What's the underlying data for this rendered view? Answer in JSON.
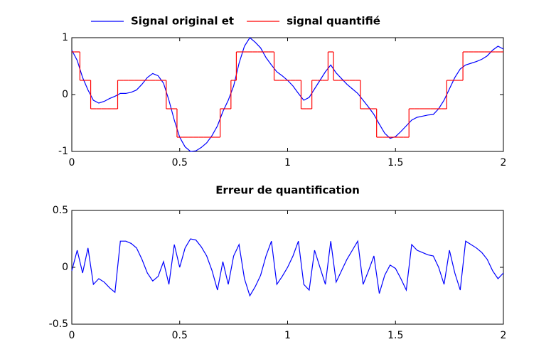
{
  "chart_data": [
    {
      "type": "line",
      "legend": "top",
      "x": [
        0,
        0.025,
        0.05,
        0.075,
        0.1,
        0.125,
        0.15,
        0.175,
        0.2,
        0.225,
        0.25,
        0.275,
        0.3,
        0.325,
        0.35,
        0.375,
        0.4,
        0.425,
        0.45,
        0.475,
        0.5,
        0.525,
        0.55,
        0.575,
        0.6,
        0.625,
        0.65,
        0.675,
        0.7,
        0.725,
        0.75,
        0.775,
        0.8,
        0.825,
        0.85,
        0.875,
        0.9,
        0.925,
        0.95,
        0.975,
        1,
        1.025,
        1.05,
        1.075,
        1.1,
        1.125,
        1.15,
        1.175,
        1.2,
        1.225,
        1.25,
        1.275,
        1.3,
        1.325,
        1.35,
        1.375,
        1.4,
        1.425,
        1.45,
        1.475,
        1.5,
        1.525,
        1.55,
        1.575,
        1.6,
        1.625,
        1.65,
        1.675,
        1.7,
        1.725,
        1.75,
        1.775,
        1.8,
        1.825,
        1.85,
        1.875,
        1.9,
        1.925,
        1.95,
        1.975,
        2
      ],
      "series": [
        {
          "name": "Signal original et",
          "color": "#0000ff",
          "values": [
            0.78,
            0.6,
            0.3,
            0.08,
            -0.1,
            -0.15,
            -0.12,
            -0.07,
            -0.03,
            0.02,
            0.02,
            0.04,
            0.08,
            0.18,
            0.3,
            0.37,
            0.33,
            0.2,
            -0.1,
            -0.45,
            -0.75,
            -0.92,
            -1,
            -0.99,
            -0.93,
            -0.85,
            -0.72,
            -0.55,
            -0.3,
            -0.1,
            0.15,
            0.55,
            0.85,
            1,
            0.92,
            0.82,
            0.65,
            0.52,
            0.4,
            0.33,
            0.25,
            0.15,
            0.02,
            -0.1,
            -0.05,
            0.1,
            0.25,
            0.4,
            0.52,
            0.38,
            0.28,
            0.18,
            0.1,
            0.02,
            -0.1,
            -0.22,
            -0.35,
            -0.52,
            -0.68,
            -0.77,
            -0.74,
            -0.65,
            -0.55,
            -0.45,
            -0.4,
            -0.38,
            -0.36,
            -0.35,
            -0.25,
            -0.1,
            0.1,
            0.3,
            0.45,
            0.52,
            0.55,
            0.58,
            0.62,
            0.68,
            0.78,
            0.85,
            0.8
          ]
        },
        {
          "name": "signal quantifié",
          "color": "#ff0000",
          "drawstyle": "steps",
          "values": [
            0.75,
            0.75,
            0.25,
            0.25,
            -0.25,
            -0.25,
            -0.25,
            -0.25,
            -0.25,
            0.25,
            0.25,
            0.25,
            0.25,
            0.25,
            0.25,
            0.25,
            0.25,
            0.25,
            -0.25,
            -0.25,
            -0.75,
            -0.75,
            -0.75,
            -0.75,
            -0.75,
            -0.75,
            -0.75,
            -0.75,
            -0.25,
            -0.25,
            0.25,
            0.75,
            0.75,
            0.75,
            0.75,
            0.75,
            0.75,
            0.75,
            0.25,
            0.25,
            0.25,
            0.25,
            0.25,
            -0.25,
            -0.25,
            0.25,
            0.25,
            0.25,
            0.75,
            0.25,
            0.25,
            0.25,
            0.25,
            0.25,
            -0.25,
            -0.25,
            -0.25,
            -0.75,
            -0.75,
            -0.75,
            -0.75,
            -0.75,
            -0.75,
            -0.25,
            -0.25,
            -0.25,
            -0.25,
            -0.25,
            -0.25,
            -0.25,
            0.25,
            0.25,
            0.25,
            0.75,
            0.75,
            0.75,
            0.75,
            0.75,
            0.75,
            0.75,
            0.75
          ]
        }
      ],
      "xlim": [
        0,
        2
      ],
      "xticks": [
        0,
        0.5,
        1,
        1.5,
        2
      ],
      "ylim": [
        -1,
        1
      ],
      "yticks": [
        -1,
        0,
        1
      ]
    },
    {
      "type": "line",
      "title": "Erreur de quantification",
      "x": [
        0,
        0.025,
        0.05,
        0.075,
        0.1,
        0.125,
        0.15,
        0.175,
        0.2,
        0.225,
        0.25,
        0.275,
        0.3,
        0.325,
        0.35,
        0.375,
        0.4,
        0.425,
        0.45,
        0.475,
        0.5,
        0.525,
        0.55,
        0.575,
        0.6,
        0.625,
        0.65,
        0.675,
        0.7,
        0.725,
        0.75,
        0.775,
        0.8,
        0.825,
        0.85,
        0.875,
        0.9,
        0.925,
        0.95,
        0.975,
        1,
        1.025,
        1.05,
        1.075,
        1.1,
        1.125,
        1.15,
        1.175,
        1.2,
        1.225,
        1.25,
        1.275,
        1.3,
        1.325,
        1.35,
        1.375,
        1.4,
        1.425,
        1.45,
        1.475,
        1.5,
        1.525,
        1.55,
        1.575,
        1.6,
        1.625,
        1.65,
        1.675,
        1.7,
        1.725,
        1.75,
        1.775,
        1.8,
        1.825,
        1.85,
        1.875,
        1.9,
        1.925,
        1.95,
        1.975,
        2
      ],
      "series": [
        {
          "color": "#0000ff",
          "values": [
            -0.03,
            0.15,
            -0.05,
            0.17,
            -0.15,
            -0.1,
            -0.13,
            -0.18,
            -0.22,
            0.23,
            0.23,
            0.21,
            0.17,
            0.07,
            -0.05,
            -0.12,
            -0.08,
            0.05,
            -0.15,
            0.2,
            0,
            0.17,
            0.25,
            0.24,
            0.18,
            0.1,
            -0.03,
            -0.2,
            0.05,
            -0.15,
            0.1,
            0.2,
            -0.1,
            -0.25,
            -0.17,
            -0.07,
            0.1,
            0.23,
            -0.15,
            -0.08,
            0,
            0.1,
            0.23,
            -0.15,
            -0.2,
            0.15,
            0,
            -0.15,
            0.23,
            -0.13,
            -0.03,
            0.07,
            0.15,
            0.23,
            -0.15,
            -0.03,
            0.1,
            -0.23,
            -0.07,
            0.02,
            -0.01,
            -0.1,
            -0.2,
            0.2,
            0.15,
            0.13,
            0.11,
            0.1,
            0,
            -0.15,
            0.15,
            -0.05,
            -0.2,
            0.23,
            0.2,
            0.17,
            0.13,
            0.07,
            -0.03,
            -0.1,
            -0.05
          ]
        }
      ],
      "xlim": [
        0,
        2
      ],
      "xticks": [
        0,
        0.5,
        1,
        1.5,
        2
      ],
      "ylim": [
        -0.5,
        0.5
      ],
      "yticks": [
        -0.5,
        0,
        0.5
      ]
    }
  ]
}
